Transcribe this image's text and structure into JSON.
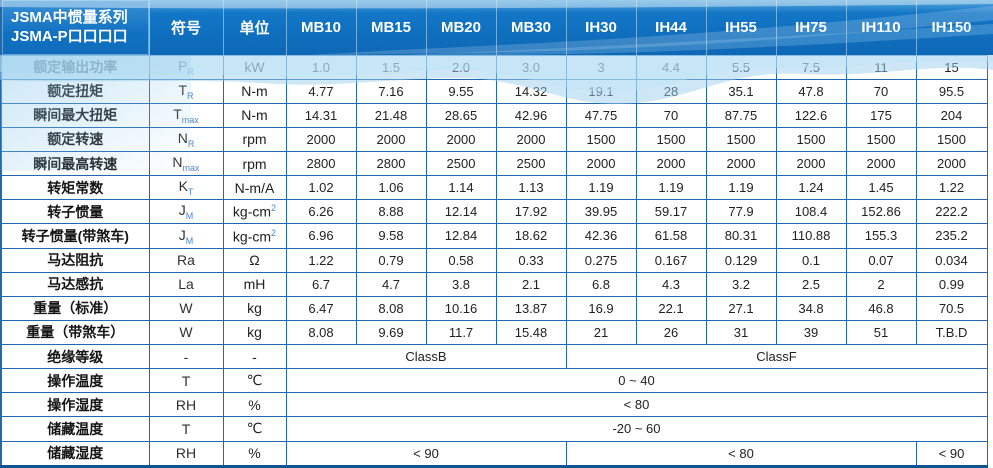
{
  "table": {
    "title_line1": "JSMA中惯量系列",
    "title_line2": "JSMA-P口口口口",
    "col_headers": [
      "符号",
      "单位",
      "MB10",
      "MB15",
      "MB20",
      "MB30",
      "IH30",
      "IH44",
      "IH55",
      "IH75",
      "IH110",
      "IH150"
    ],
    "rows": [
      {
        "label": "额定输出功率",
        "sym": "P",
        "sub": "R",
        "unit": "kW",
        "values": [
          "1.0",
          "1.5",
          "2.0",
          "3.0",
          "3",
          "4.4",
          "5.5",
          "7.5",
          "11",
          "15"
        ]
      },
      {
        "label": "额定扭矩",
        "sym": "T",
        "sub": "R",
        "unit": "N-m",
        "values": [
          "4.77",
          "7.16",
          "9.55",
          "14.32",
          "19.1",
          "28",
          "35.1",
          "47.8",
          "70",
          "95.5"
        ]
      },
      {
        "label": "瞬间最大扭矩",
        "sym": "T",
        "sub": "max",
        "unit": "N-m",
        "values": [
          "14.31",
          "21.48",
          "28.65",
          "42.96",
          "47.75",
          "70",
          "87.75",
          "122.6",
          "175",
          "204"
        ]
      },
      {
        "label": "额定转速",
        "sym": "N",
        "sub": "R",
        "unit": "rpm",
        "values": [
          "2000",
          "2000",
          "2000",
          "2000",
          "1500",
          "1500",
          "1500",
          "1500",
          "1500",
          "1500"
        ]
      },
      {
        "label": "瞬间最高转速",
        "sym": "N",
        "sub": "max",
        "unit": "rpm",
        "values": [
          "2800",
          "2800",
          "2500",
          "2500",
          "2000",
          "2000",
          "2000",
          "2000",
          "2000",
          "2000"
        ]
      },
      {
        "label": "转矩常数",
        "sym": "K",
        "sub": "T",
        "unit": "N-m/A",
        "values": [
          "1.02",
          "1.06",
          "1.14",
          "1.13",
          "1.19",
          "1.19",
          "1.19",
          "1.24",
          "1.45",
          "1.22"
        ]
      },
      {
        "label": "转子惯量",
        "sym": "J",
        "sub": "M",
        "unit": "kg-cm",
        "unit_sup": "2",
        "values": [
          "6.26",
          "8.88",
          "12.14",
          "17.92",
          "39.95",
          "59.17",
          "77.9",
          "108.4",
          "152.86",
          "222.2"
        ]
      },
      {
        "label": "转子惯量(带煞车)",
        "sym": "J",
        "sub": "M",
        "unit": "kg-cm",
        "unit_sup": "2",
        "values": [
          "6.96",
          "9.58",
          "12.84",
          "18.62",
          "42.36",
          "61.58",
          "80.31",
          "110.88",
          "155.3",
          "235.2"
        ]
      },
      {
        "label": "马达阻抗",
        "sym": "Ra",
        "unit": "Ω",
        "values": [
          "1.22",
          "0.79",
          "0.58",
          "0.33",
          "0.275",
          "0.167",
          "0.129",
          "0.1",
          "0.07",
          "0.034"
        ]
      },
      {
        "label": "马达感抗",
        "sym": "La",
        "unit": "mH",
        "values": [
          "6.7",
          "4.7",
          "3.8",
          "2.1",
          "6.8",
          "4.3",
          "3.2",
          "2.5",
          "2",
          "0.99"
        ]
      },
      {
        "label": "重量（标准）",
        "sym": "W",
        "unit": "kg",
        "values": [
          "6.47",
          "8.08",
          "10.16",
          "13.87",
          "16.9",
          "22.1",
          "27.1",
          "34.8",
          "46.8",
          "70.5"
        ]
      },
      {
        "label": "重量（带煞车）",
        "sym": "W",
        "unit": "kg",
        "values": [
          "8.08",
          "9.69",
          "11.7",
          "15.48",
          "21",
          "26",
          "31",
          "39",
          "51",
          "T.B.D"
        ]
      },
      {
        "label": "绝缘等级",
        "sym": "-",
        "unit": "-",
        "spans": [
          {
            "text": "ClassB",
            "cols": 4
          },
          {
            "text": "ClassF",
            "cols": 6
          }
        ]
      },
      {
        "label": "操作温度",
        "sym": "T",
        "unit": "℃",
        "spans": [
          {
            "text": "0 ~ 40",
            "cols": 10
          }
        ]
      },
      {
        "label": "操作湿度",
        "sym": "RH",
        "unit": "%",
        "spans": [
          {
            "text": "< 80",
            "cols": 10
          }
        ]
      },
      {
        "label": "储藏温度",
        "sym": "T",
        "unit": "℃",
        "spans": [
          {
            "text": "-20 ~ 60",
            "cols": 10
          }
        ]
      },
      {
        "label": "储藏湿度",
        "sym": "RH",
        "unit": "%",
        "spans": [
          {
            "text": "< 90",
            "cols": 4
          },
          {
            "text": "< 80",
            "cols": 5
          },
          {
            "text": "< 90",
            "cols": 1
          }
        ]
      }
    ]
  },
  "colors": {
    "header_blue": "#0d68b6",
    "border_blue": "#2068b0",
    "bottom_border": "#0d5494",
    "wave_light_blue": "#9ccfed",
    "subscript_blue": "#4a86c8"
  }
}
